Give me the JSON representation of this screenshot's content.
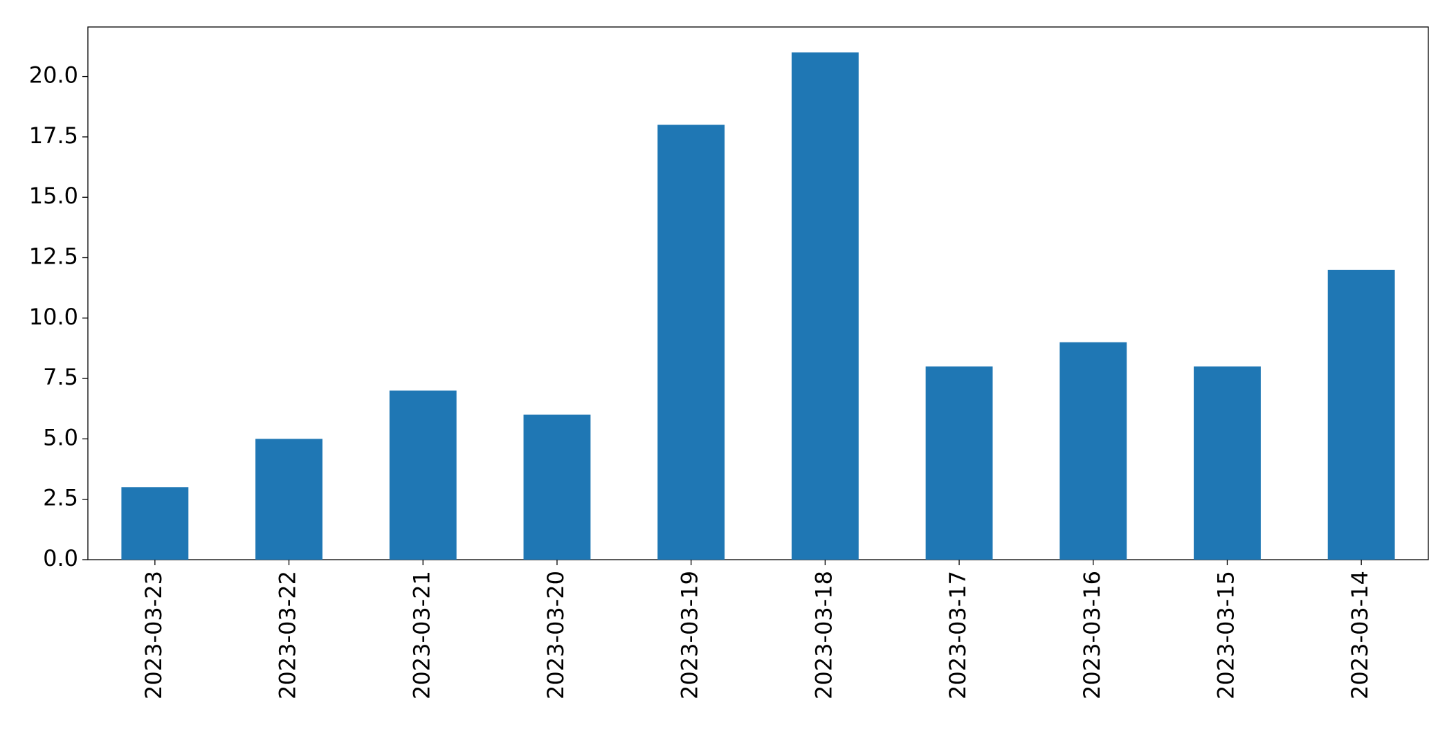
{
  "chart_data": {
    "type": "bar",
    "categories": [
      "2023-03-23",
      "2023-03-22",
      "2023-03-21",
      "2023-03-20",
      "2023-03-19",
      "2023-03-18",
      "2023-03-17",
      "2023-03-16",
      "2023-03-15",
      "2023-03-14"
    ],
    "values": [
      3,
      5,
      7,
      6,
      18,
      21,
      8,
      9,
      8,
      12
    ],
    "color": "#1f77b4",
    "ylim": [
      0,
      22.05
    ],
    "yticks": [
      {
        "value": 0,
        "label": "0.0"
      },
      2.5,
      {
        "value": 5,
        "label": "5.0"
      },
      7.5,
      {
        "value": 10,
        "label": "10.0"
      },
      12.5,
      {
        "value": 15,
        "label": "15.0"
      },
      17.5,
      {
        "value": 20,
        "label": "20.0"
      }
    ],
    "grid": false
  }
}
